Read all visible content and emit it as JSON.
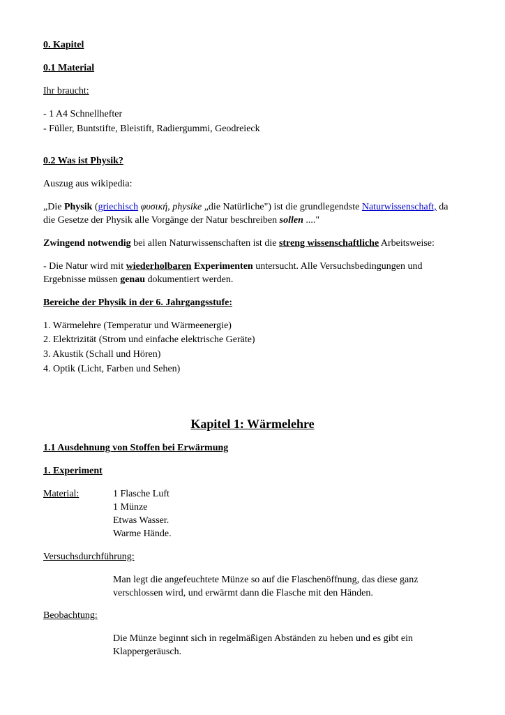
{
  "sec0": {
    "title": "0. Kapitel",
    "s01_title": "0.1 Material",
    "need_label": "Ihr braucht:",
    "need_items": [
      "- 1 A4 Schnellhefter",
      "- Füller, Buntstifte, Bleistift, Radiergummi, Geodreieck"
    ],
    "s02_title": "0.2 Was ist Physik?",
    "wiki_label": "Auszug aus wikipedia:",
    "def_q1": "„Die ",
    "def_physik": "Physik",
    "def_paren_open": " (",
    "def_link1": "griechisch",
    "def_greek": " φυσική, physike ",
    "def_q2": "„die Natürliche\") ist die grundlegendste ",
    "def_link2": "Naturwissenschaft,",
    "def_rest": " da die Gesetze der Physik alle Vorgänge der Natur beschreiben ",
    "def_sollen": "sollen",
    "def_end": " ....\"",
    "zw1": "Zwingend notwendig",
    "zw2": " bei allen Naturwissenschaften ist die ",
    "zw3": "streng wissenschaftliche",
    "zw4": " Arbeitsweise:",
    "nat1": "- Die Natur wird mit ",
    "nat2": "wiederholbaren",
    "nat3": " Experimenten",
    "nat4": " untersucht. Alle Versuchsbedingungen und Ergebnisse müssen ",
    "nat5": "genau",
    "nat6": " dokumentiert werden.",
    "bereiche_title": "Bereiche der Physik in der 6. Jahrgangsstufe:",
    "bereiche": [
      "1. Wärmelehre (Temperatur und Wärmeenergie)",
      "2. Elektrizität (Strom und einfache elektrische Geräte)",
      "3. Akustik (Schall und Hören)",
      "4. Optik (Licht, Farben und Sehen)"
    ]
  },
  "sec1": {
    "title": "Kapitel 1: Wärmelehre",
    "s11_title": "1.1 Ausdehnung von Stoffen bei Erwärmung",
    "exp_title": "1. Experiment",
    "material_label": "Material:",
    "materials": [
      "1 Flasche Luft",
      "1 Münze",
      "Etwas Wasser.",
      "Warme Hände."
    ],
    "durch_label": "Versuchsdurchführung:",
    "durch_text": "Man legt die angefeuchtete Münze so auf die Flaschenöffnung, das diese ganz verschlossen wird, und erwärmt dann die Flasche mit den Händen.",
    "beo_label": "Beobachtung:",
    "beo_text": "Die Münze beginnt sich in regelmäßigen Abständen zu heben und es gibt ein Klappergeräusch."
  },
  "style": {
    "link_color": "#0000cc",
    "text_color": "#000000",
    "bg_color": "#ffffff",
    "body_fontsize": 14,
    "h1_fontsize": 18
  }
}
